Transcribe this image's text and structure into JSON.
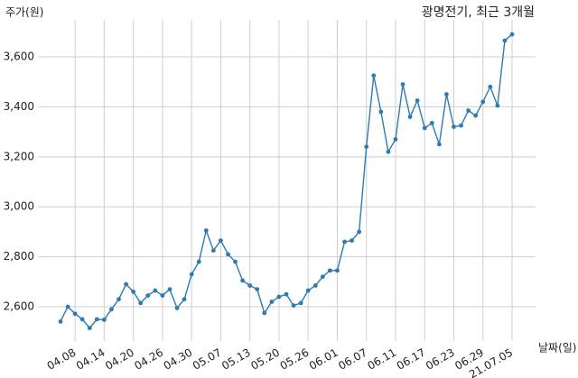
{
  "chart_data": {
    "type": "line",
    "title": "광명전기, 최근 3개월",
    "y_label": "주가(원)",
    "x_label": "날짜(일)",
    "categories": [
      null,
      null,
      "04.08",
      null,
      null,
      null,
      "04.14",
      null,
      null,
      null,
      "04.20",
      null,
      null,
      null,
      "04.26",
      null,
      null,
      null,
      "04.30",
      null,
      null,
      null,
      "05.07",
      null,
      null,
      null,
      "05.13",
      null,
      null,
      null,
      "05.20",
      null,
      null,
      null,
      "05.26",
      null,
      null,
      null,
      "06.01",
      null,
      null,
      null,
      "06.07",
      null,
      null,
      null,
      "06.11",
      null,
      null,
      null,
      "06.17",
      null,
      null,
      null,
      "06.23",
      null,
      null,
      null,
      "06.29",
      null,
      null,
      null,
      "21.07.05"
    ],
    "series": [
      {
        "name": "주가",
        "color": "#2e7bb4",
        "values": [
          2541,
          2600,
          2572,
          2550,
          2515,
          2550,
          2548,
          2590,
          2630,
          2690,
          2660,
          2615,
          2645,
          2665,
          2645,
          2670,
          2595,
          2630,
          2730,
          2780,
          2905,
          2825,
          2865,
          2810,
          2780,
          2705,
          2685,
          2670,
          2575,
          2620,
          2640,
          2650,
          2605,
          2615,
          2665,
          2685,
          2720,
          2745,
          2745,
          2860,
          2865,
          2900,
          3240,
          3525,
          3380,
          3220,
          3270,
          3490,
          3360,
          3425,
          3315,
          3335,
          3250,
          3450,
          3320,
          3325,
          3385,
          3365,
          3420,
          3480,
          3405,
          3665,
          3690
        ]
      }
    ],
    "ylim": [
      2463,
      3748
    ],
    "yticks": [
      {
        "value": 2600,
        "label": "2,600"
      },
      {
        "value": 2800,
        "label": "2,800"
      },
      {
        "value": 3000,
        "label": "3,000"
      },
      {
        "value": 3200,
        "label": "3,200"
      },
      {
        "value": 3400,
        "label": "3,400"
      },
      {
        "value": 3600,
        "label": "3,600"
      }
    ],
    "grid": true
  }
}
